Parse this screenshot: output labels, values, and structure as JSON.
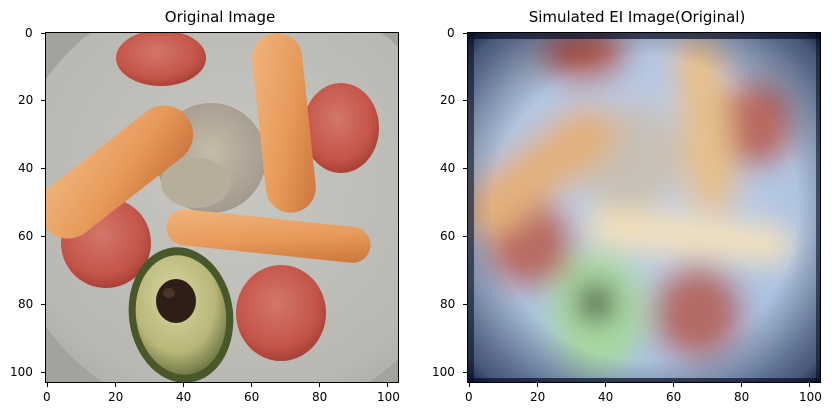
{
  "panels": [
    {
      "title": "Original Image",
      "image_description": "top-down photo of a plate with bread sticks, tomato slices, chicken, and a halved avocado",
      "y_ticks": [
        "0",
        "20",
        "40",
        "60",
        "80",
        "100"
      ],
      "x_ticks": [
        "0",
        "20",
        "40",
        "60",
        "80",
        "100"
      ]
    },
    {
      "title": "Simulated EI Image(Original)",
      "image_description": "blurred version of the plate image with a bluish tint and dark vignette edges",
      "y_ticks": [
        "0",
        "20",
        "40",
        "60",
        "80",
        "100"
      ],
      "x_ticks": [
        "0",
        "20",
        "40",
        "60",
        "80",
        "100"
      ]
    }
  ]
}
